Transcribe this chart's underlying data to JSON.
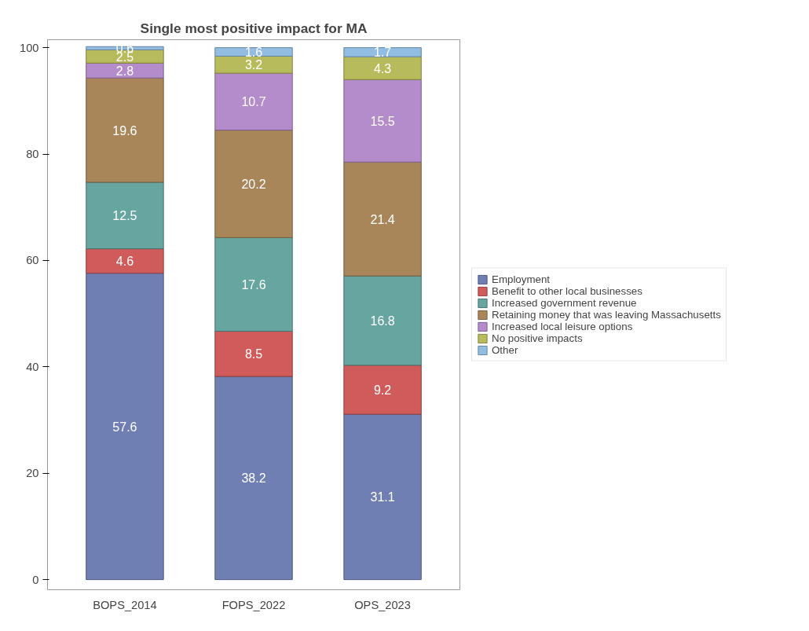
{
  "chart_data": {
    "type": "bar",
    "title": "Single most positive impact for MA",
    "categories": [
      "BOPS_2014",
      "FOPS_2022",
      "OPS_2023"
    ],
    "stacked": true,
    "data_labels": true,
    "legend": "right",
    "grid": false,
    "ylim": [
      -1.9,
      101.5
    ],
    "yticks": [
      0,
      20,
      40,
      60,
      80,
      100
    ],
    "series": [
      {
        "name": "Employment",
        "color": "#6f7fb3",
        "values": [
          57.6,
          38.2,
          31.1
        ]
      },
      {
        "name": "Benefit to other local businesses",
        "color": "#d05b5b",
        "values": [
          4.6,
          8.5,
          9.2
        ]
      },
      {
        "name": "Increased government revenue",
        "color": "#66a5a0",
        "values": [
          12.5,
          17.6,
          16.8
        ]
      },
      {
        "name": "Retaining money that was leaving Massachusetts",
        "color": "#a8865a",
        "values": [
          19.6,
          20.2,
          21.4
        ]
      },
      {
        "name": "Increased local leisure options",
        "color": "#b48bcb",
        "values": [
          2.8,
          10.7,
          15.5
        ]
      },
      {
        "name": "No positive impacts",
        "color": "#b8bb5c",
        "values": [
          2.5,
          3.2,
          4.3
        ]
      },
      {
        "name": "Other",
        "color": "#92bde2",
        "values": [
          0.6,
          1.6,
          1.7
        ]
      }
    ]
  }
}
